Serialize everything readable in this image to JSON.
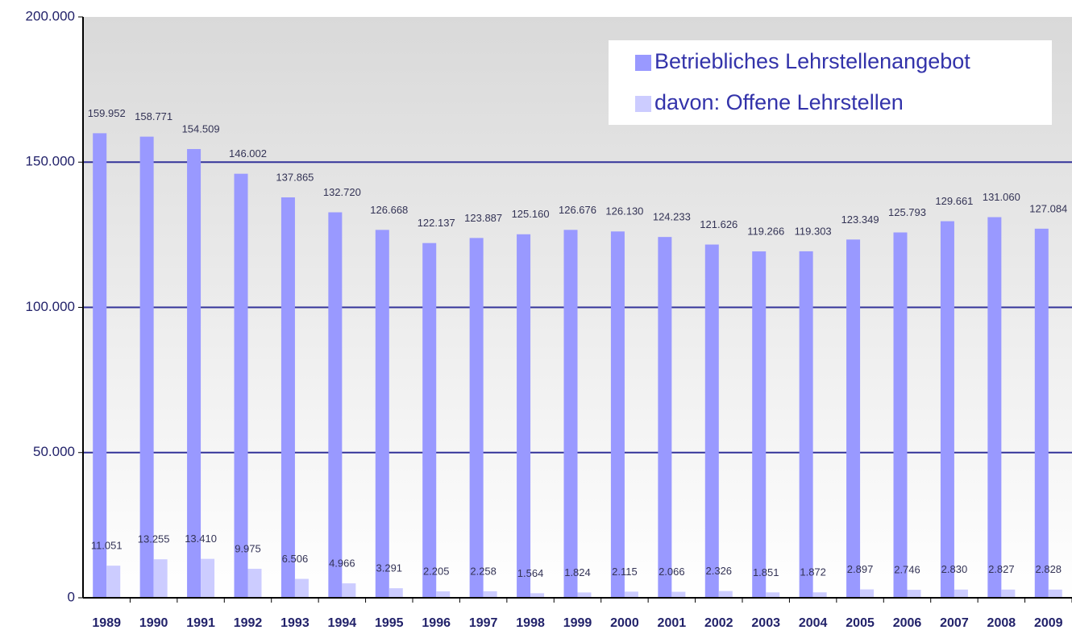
{
  "chart_data": {
    "type": "bar",
    "categories": [
      "1989",
      "1990",
      "1991",
      "1992",
      "1993",
      "1994",
      "1995",
      "1996",
      "1997",
      "1998",
      "1999",
      "2000",
      "2001",
      "2002",
      "2003",
      "2004",
      "2005",
      "2006",
      "2007",
      "2008",
      "2009"
    ],
    "series": [
      {
        "name": "Betriebliches Lehrstellenangebot",
        "color": "#9999ff",
        "values": [
          159952,
          158771,
          154509,
          146002,
          137865,
          132720,
          126668,
          122137,
          123887,
          125160,
          126676,
          126130,
          124233,
          121626,
          119266,
          119303,
          123349,
          125793,
          129661,
          131060,
          127084
        ],
        "value_labels": [
          "159.952",
          "158.771",
          "154.509",
          "146.002",
          "137.865",
          "132.720",
          "126.668",
          "122.137",
          "123.887",
          "125.160",
          "126.676",
          "126.130",
          "124.233",
          "121.626",
          "119.266",
          "119.303",
          "123.349",
          "125.793",
          "129.661",
          "131.060",
          "127.084"
        ]
      },
      {
        "name": "davon: Offene Lehrstellen",
        "color": "#ccccff",
        "values": [
          11051,
          13255,
          13410,
          9975,
          6506,
          4966,
          3291,
          2205,
          2258,
          1564,
          1824,
          2115,
          2066,
          2326,
          1851,
          1872,
          2897,
          2746,
          2830,
          2827,
          2828
        ],
        "value_labels": [
          "11.051",
          "13.255",
          "13.410",
          "9.975",
          "6.506",
          "4.966",
          "3.291",
          "2.205",
          "2.258",
          "1.564",
          "1.824",
          "2.115",
          "2.066",
          "2.326",
          "1.851",
          "1.872",
          "2.897",
          "2.746",
          "2.830",
          "2.827",
          "2.828"
        ]
      }
    ],
    "ylim": [
      0,
      200000
    ],
    "yticks": [
      0,
      {
        "value": 50000,
        "label": "50.000"
      },
      {
        "value": 100000,
        "label": "100.000"
      },
      {
        "value": 150000,
        "label": "150.000"
      },
      {
        "value": 200000,
        "label": "200.000"
      }
    ],
    "grid": true,
    "legend": "top-right"
  }
}
